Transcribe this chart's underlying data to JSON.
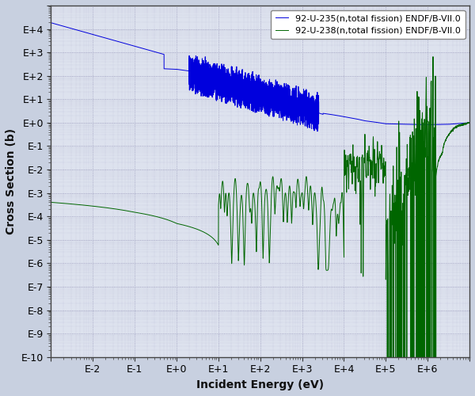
{
  "xlabel": "Incident Energy (eV)",
  "ylabel": "Cross Section (b)",
  "u235_label": "92-U-235(n,total fission) ENDF/B-VII.0",
  "u238_label": "92-U-238(n,total fission) ENDF/B-VII.0",
  "u235_color": "#0000dd",
  "u238_color": "#006600",
  "background_color": "#c8d0e0",
  "plot_bg_color": "#dde2ee",
  "grid_color": "#9999bb",
  "legend_bg": "#ffffff"
}
